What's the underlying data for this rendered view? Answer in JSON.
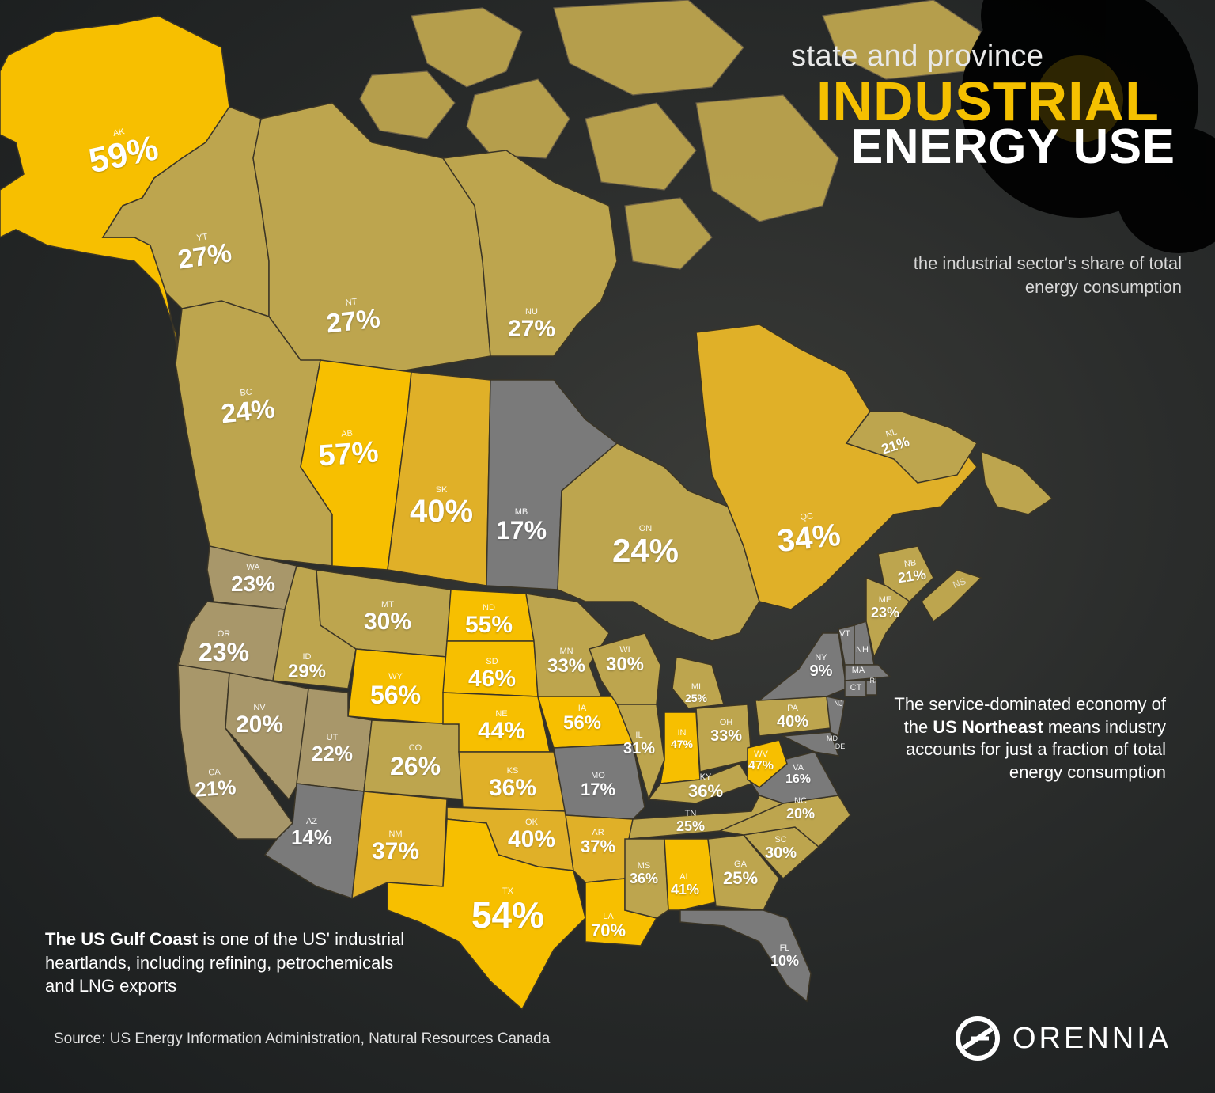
{
  "title": {
    "line1": "state and province",
    "line2": "INDUSTRIAL",
    "line3": "ENERGY USE"
  },
  "subtitle": "the industrial sector's share of total energy consumption",
  "annotations": {
    "northeast": {
      "pre": "The service-dominated economy of the ",
      "bold": "US Northeast",
      "post": " means industry accounts for just a fraction of total energy consumption"
    },
    "gulf": {
      "bold": "The US Gulf Coast",
      "post": " is one of the US' industrial heartlands, including refining, petrochemicals and LNG exports"
    }
  },
  "source": "Source: US Energy Information Administration, Natural Resources Canada",
  "brand": "ORENNIA",
  "colors": {
    "high": "#f7bf00",
    "mid_high": "#e0b028",
    "mid": "#bda54e",
    "low": "#a8976a",
    "lowest": "#7a7a7a"
  },
  "map_data": [
    {
      "id": "AK",
      "value": 59
    },
    {
      "id": "YT",
      "value": 27
    },
    {
      "id": "NT",
      "value": 27
    },
    {
      "id": "NU",
      "value": 27
    },
    {
      "id": "BC",
      "value": 24
    },
    {
      "id": "AB",
      "value": 57
    },
    {
      "id": "SK",
      "value": 40
    },
    {
      "id": "MB",
      "value": 17
    },
    {
      "id": "ON",
      "value": 24
    },
    {
      "id": "QC",
      "value": 34
    },
    {
      "id": "NL",
      "value": 21
    },
    {
      "id": "NB",
      "value": 21
    },
    {
      "id": "NS",
      "value": null
    },
    {
      "id": "WA",
      "value": 23
    },
    {
      "id": "OR",
      "value": 23
    },
    {
      "id": "CA",
      "value": 21
    },
    {
      "id": "ID",
      "value": 29
    },
    {
      "id": "NV",
      "value": 20
    },
    {
      "id": "MT",
      "value": 30
    },
    {
      "id": "WY",
      "value": 56
    },
    {
      "id": "UT",
      "value": 22
    },
    {
      "id": "AZ",
      "value": 14
    },
    {
      "id": "CO",
      "value": 26
    },
    {
      "id": "NM",
      "value": 37
    },
    {
      "id": "ND",
      "value": 55
    },
    {
      "id": "SD",
      "value": 46
    },
    {
      "id": "NE",
      "value": 44
    },
    {
      "id": "KS",
      "value": 36
    },
    {
      "id": "OK",
      "value": 40
    },
    {
      "id": "TX",
      "value": 54
    },
    {
      "id": "MN",
      "value": 33
    },
    {
      "id": "IA",
      "value": 56
    },
    {
      "id": "MO",
      "value": 17
    },
    {
      "id": "AR",
      "value": 37
    },
    {
      "id": "LA",
      "value": 70
    },
    {
      "id": "WI",
      "value": 30
    },
    {
      "id": "IL",
      "value": 31
    },
    {
      "id": "MI",
      "value": 25
    },
    {
      "id": "IN",
      "value": 47
    },
    {
      "id": "OH",
      "value": 33
    },
    {
      "id": "KY",
      "value": 36
    },
    {
      "id": "TN",
      "value": 25
    },
    {
      "id": "MS",
      "value": 36
    },
    {
      "id": "AL",
      "value": 41
    },
    {
      "id": "GA",
      "value": 25
    },
    {
      "id": "FL",
      "value": 10
    },
    {
      "id": "SC",
      "value": 30
    },
    {
      "id": "NC",
      "value": 20
    },
    {
      "id": "VA",
      "value": 16
    },
    {
      "id": "WV",
      "value": 47
    },
    {
      "id": "PA",
      "value": 40
    },
    {
      "id": "NY",
      "value": 9
    },
    {
      "id": "ME",
      "value": 23
    },
    {
      "id": "VT",
      "value": null
    },
    {
      "id": "NH",
      "value": null
    },
    {
      "id": "MA",
      "value": null
    },
    {
      "id": "CT",
      "value": null
    },
    {
      "id": "RI",
      "value": null
    },
    {
      "id": "NJ",
      "value": null
    },
    {
      "id": "MD",
      "value": null
    },
    {
      "id": "DE",
      "value": null
    }
  ]
}
